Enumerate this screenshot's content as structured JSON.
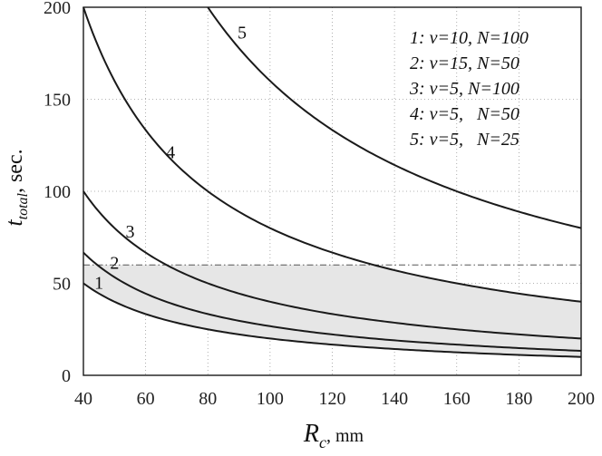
{
  "chart_data": {
    "type": "line",
    "xlabel_main": "R",
    "xlabel_sub": "c",
    "xlabel_unit": ", mm",
    "ylabel_main": "t",
    "ylabel_sub": "total",
    "ylabel_unit": ", sec.",
    "xlim": [
      40,
      200
    ],
    "ylim": [
      0,
      200
    ],
    "xticks": [
      40,
      60,
      80,
      100,
      120,
      140,
      160,
      180,
      200
    ],
    "yticks": [
      0,
      50,
      100,
      150,
      200
    ],
    "grid": true,
    "threshold": {
      "y": 60,
      "style": "dash-dot"
    },
    "shaded_region": {
      "between_series": [
        0,
        3
      ],
      "capped_at": 60
    },
    "series": [
      {
        "name": "1",
        "legend": "1: v=10, N=100",
        "x": [
          40,
          60,
          80,
          100,
          120,
          140,
          160,
          180,
          200
        ],
        "values": [
          50,
          33.3,
          25,
          20,
          16.7,
          14.3,
          12.5,
          11.1,
          10
        ]
      },
      {
        "name": "2",
        "legend": "2: v=15, N=50",
        "x": [
          40,
          60,
          80,
          100,
          120,
          140,
          160,
          180,
          200
        ],
        "values": [
          66.7,
          44.4,
          33.3,
          26.7,
          22.2,
          19,
          16.7,
          14.8,
          13.3
        ]
      },
      {
        "name": "3",
        "legend": "3: v=5, N=100",
        "x": [
          40,
          60,
          80,
          100,
          120,
          140,
          160,
          180,
          200
        ],
        "values": [
          100,
          66.7,
          50,
          40,
          33.3,
          28.6,
          25,
          22.2,
          20
        ]
      },
      {
        "name": "4",
        "legend": "4: v=5,   N=50",
        "x": [
          40,
          60,
          80,
          100,
          120,
          140,
          160,
          180,
          200
        ],
        "values": [
          200,
          133.3,
          100,
          80,
          66.7,
          57.1,
          50,
          44.4,
          40
        ]
      },
      {
        "name": "5",
        "legend": "5: v=5,   N=25",
        "x": [
          80,
          100,
          120,
          140,
          160,
          180,
          200
        ],
        "values": [
          200,
          160,
          133.3,
          114.3,
          100,
          88.9,
          80
        ]
      }
    ],
    "curve_labels": [
      {
        "text": "1",
        "x": 45,
        "y": 47
      },
      {
        "text": "2",
        "x": 50,
        "y": 58
      },
      {
        "text": "3",
        "x": 55,
        "y": 75
      },
      {
        "text": "4",
        "x": 68,
        "y": 118
      },
      {
        "text": "5",
        "x": 91,
        "y": 183
      }
    ]
  }
}
